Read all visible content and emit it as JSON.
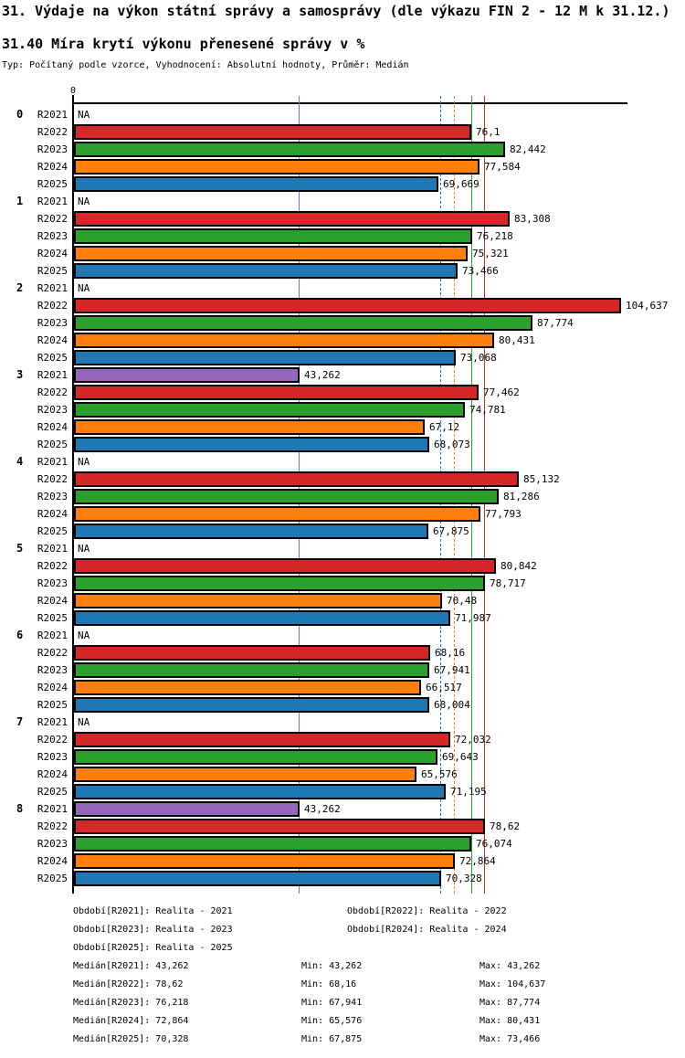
{
  "title": "31. Výdaje na výkon státní správy a samosprávy (dle výkazu FIN 2 - 12 M k 31.12.)",
  "subtitle": "31.40 Míra krytí výkonu přenesené správy v %",
  "type_line": "Typ: Počítaný podle vzorce, Vyhodnocení: Absolutní hodnoty, Průměr: Medián",
  "chart_data": {
    "type": "bar",
    "orientation": "horizontal",
    "value_unit": "%",
    "xlim": [
      0,
      106
    ],
    "grid": false,
    "axis_zero_label": "0",
    "na_label": "NA",
    "series": [
      {
        "id": "R2021",
        "label": "R2021",
        "color": "#9467bd",
        "median": 43.262,
        "median_line_style": "solid"
      },
      {
        "id": "R2022",
        "label": "R2022",
        "color": "#d62728",
        "median": 78.62,
        "median_line_style": "solid"
      },
      {
        "id": "R2023",
        "label": "R2023",
        "color": "#2ca02c",
        "median": 76.218,
        "median_line_style": "solid"
      },
      {
        "id": "R2024",
        "label": "R2024",
        "color": "#ff7f0e",
        "median": 72.864,
        "median_line_style": "dashed"
      },
      {
        "id": "R2025",
        "label": "R2025",
        "color": "#1f77b4",
        "median": 70.328,
        "median_line_style": "dashed"
      }
    ],
    "groups": [
      {
        "category": "0",
        "bars": [
          {
            "value": null,
            "label": "NA"
          },
          {
            "value": 76.1,
            "label": "76,1"
          },
          {
            "value": 82.442,
            "label": "82,442"
          },
          {
            "value": 77.584,
            "label": "77,584"
          },
          {
            "value": 69.669,
            "label": "69,669"
          }
        ]
      },
      {
        "category": "1",
        "bars": [
          {
            "value": null,
            "label": "NA"
          },
          {
            "value": 83.308,
            "label": "83,308"
          },
          {
            "value": 76.218,
            "label": "76,218"
          },
          {
            "value": 75.321,
            "label": "75,321"
          },
          {
            "value": 73.466,
            "label": "73,466"
          }
        ]
      },
      {
        "category": "2",
        "bars": [
          {
            "value": null,
            "label": "NA"
          },
          {
            "value": 104.637,
            "label": "104,637"
          },
          {
            "value": 87.774,
            "label": "87,774"
          },
          {
            "value": 80.431,
            "label": "80,431"
          },
          {
            "value": 73.068,
            "label": "73,068"
          }
        ]
      },
      {
        "category": "3",
        "bars": [
          {
            "value": 43.262,
            "label": "43,262"
          },
          {
            "value": 77.462,
            "label": "77,462"
          },
          {
            "value": 74.781,
            "label": "74,781"
          },
          {
            "value": 67.12,
            "label": "67,12"
          },
          {
            "value": 68.073,
            "label": "68,073"
          }
        ]
      },
      {
        "category": "4",
        "bars": [
          {
            "value": null,
            "label": "NA"
          },
          {
            "value": 85.132,
            "label": "85,132"
          },
          {
            "value": 81.286,
            "label": "81,286"
          },
          {
            "value": 77.793,
            "label": "77,793"
          },
          {
            "value": 67.875,
            "label": "67,875"
          }
        ]
      },
      {
        "category": "5",
        "bars": [
          {
            "value": null,
            "label": "NA"
          },
          {
            "value": 80.842,
            "label": "80,842"
          },
          {
            "value": 78.717,
            "label": "78,717"
          },
          {
            "value": 70.48,
            "label": "70,48"
          },
          {
            "value": 71.987,
            "label": "71,987"
          }
        ]
      },
      {
        "category": "6",
        "bars": [
          {
            "value": null,
            "label": "NA"
          },
          {
            "value": 68.16,
            "label": "68,16"
          },
          {
            "value": 67.941,
            "label": "67,941"
          },
          {
            "value": 66.517,
            "label": "66,517"
          },
          {
            "value": 68.004,
            "label": "68,004"
          }
        ]
      },
      {
        "category": "7",
        "bars": [
          {
            "value": null,
            "label": "NA"
          },
          {
            "value": 72.032,
            "label": "72,032"
          },
          {
            "value": 69.643,
            "label": "69,643"
          },
          {
            "value": 65.576,
            "label": "65,576"
          },
          {
            "value": 71.195,
            "label": "71,195"
          }
        ]
      },
      {
        "category": "8",
        "bars": [
          {
            "value": 43.262,
            "label": "43,262"
          },
          {
            "value": 78.62,
            "label": "78,62"
          },
          {
            "value": 76.074,
            "label": "76,074"
          },
          {
            "value": 72.864,
            "label": "72,864"
          },
          {
            "value": 70.328,
            "label": "70,328"
          }
        ]
      }
    ]
  },
  "legend": {
    "items": [
      "Období[R2021]: Realita - 2021",
      "Období[R2022]: Realita - 2022",
      "Období[R2023]: Realita - 2023",
      "Období[R2024]: Realita - 2024",
      "Období[R2025]: Realita - 2025"
    ]
  },
  "stats": [
    {
      "median": "Medián[R2021]: 43,262",
      "min": "Min: 43,262",
      "max": "Max: 43,262"
    },
    {
      "median": "Medián[R2022]: 78,62",
      "min": "Min: 68,16",
      "max": "Max: 104,637"
    },
    {
      "median": "Medián[R2023]: 76,218",
      "min": "Min: 67,941",
      "max": "Max: 87,774"
    },
    {
      "median": "Medián[R2024]: 72,864",
      "min": "Min: 65,576",
      "max": "Max: 80,431"
    },
    {
      "median": "Medián[R2025]: 70,328",
      "min": "Min: 67,875",
      "max": "Max: 73,466"
    }
  ]
}
